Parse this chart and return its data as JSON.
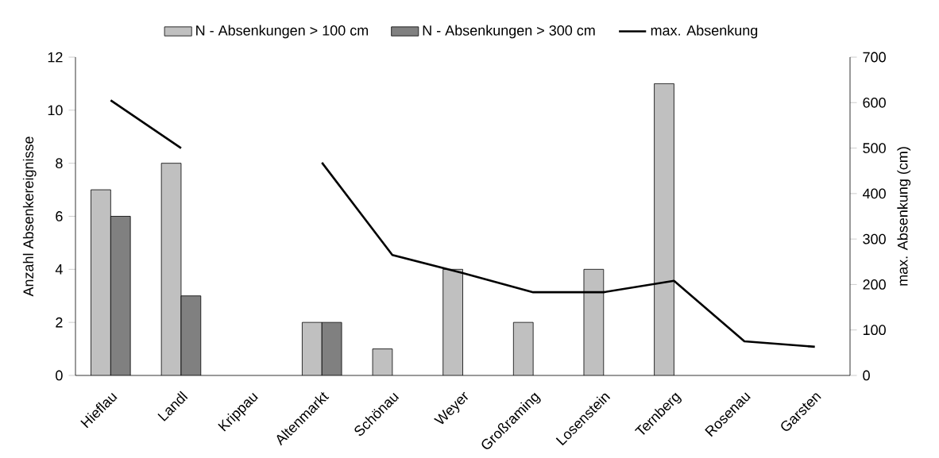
{
  "chart_data": {
    "type": "bar",
    "categories": [
      "Hieflau",
      "Landl",
      "Krippau",
      "Altenmarkt",
      "Schönau",
      "Weyer",
      "Großraming",
      "Losenstein",
      "Ternberg",
      "Rosenau",
      "Garsten"
    ],
    "ylabel": "Anzahl Absenkereignisse",
    "y2label": "max. Absenkung (cm)",
    "ylim": [
      0,
      12
    ],
    "yticks": [
      0,
      2,
      4,
      6,
      8,
      10,
      12
    ],
    "y2lim": [
      0,
      700
    ],
    "y2ticks": [
      0,
      100,
      200,
      300,
      400,
      500,
      600,
      700
    ],
    "legend": "top",
    "grid": false,
    "series": [
      {
        "name": "N - Absenkungen > 100 cm",
        "color": "#c0c0c0",
        "values": [
          7,
          8,
          null,
          2,
          1,
          4,
          2,
          4,
          11,
          null,
          null
        ]
      },
      {
        "name": "N - Absenkungen > 300 cm",
        "color": "#808080",
        "values": [
          6,
          3,
          null,
          2,
          null,
          null,
          null,
          null,
          null,
          null,
          null
        ]
      },
      {
        "name": "max. Absenkung",
        "type": "line",
        "axis": "y2",
        "color": "#000000",
        "marker": "none",
        "line_style": "solid",
        "values": [
          605,
          500,
          null,
          468,
          265,
          225,
          183,
          183,
          208,
          75,
          63
        ]
      }
    ]
  }
}
